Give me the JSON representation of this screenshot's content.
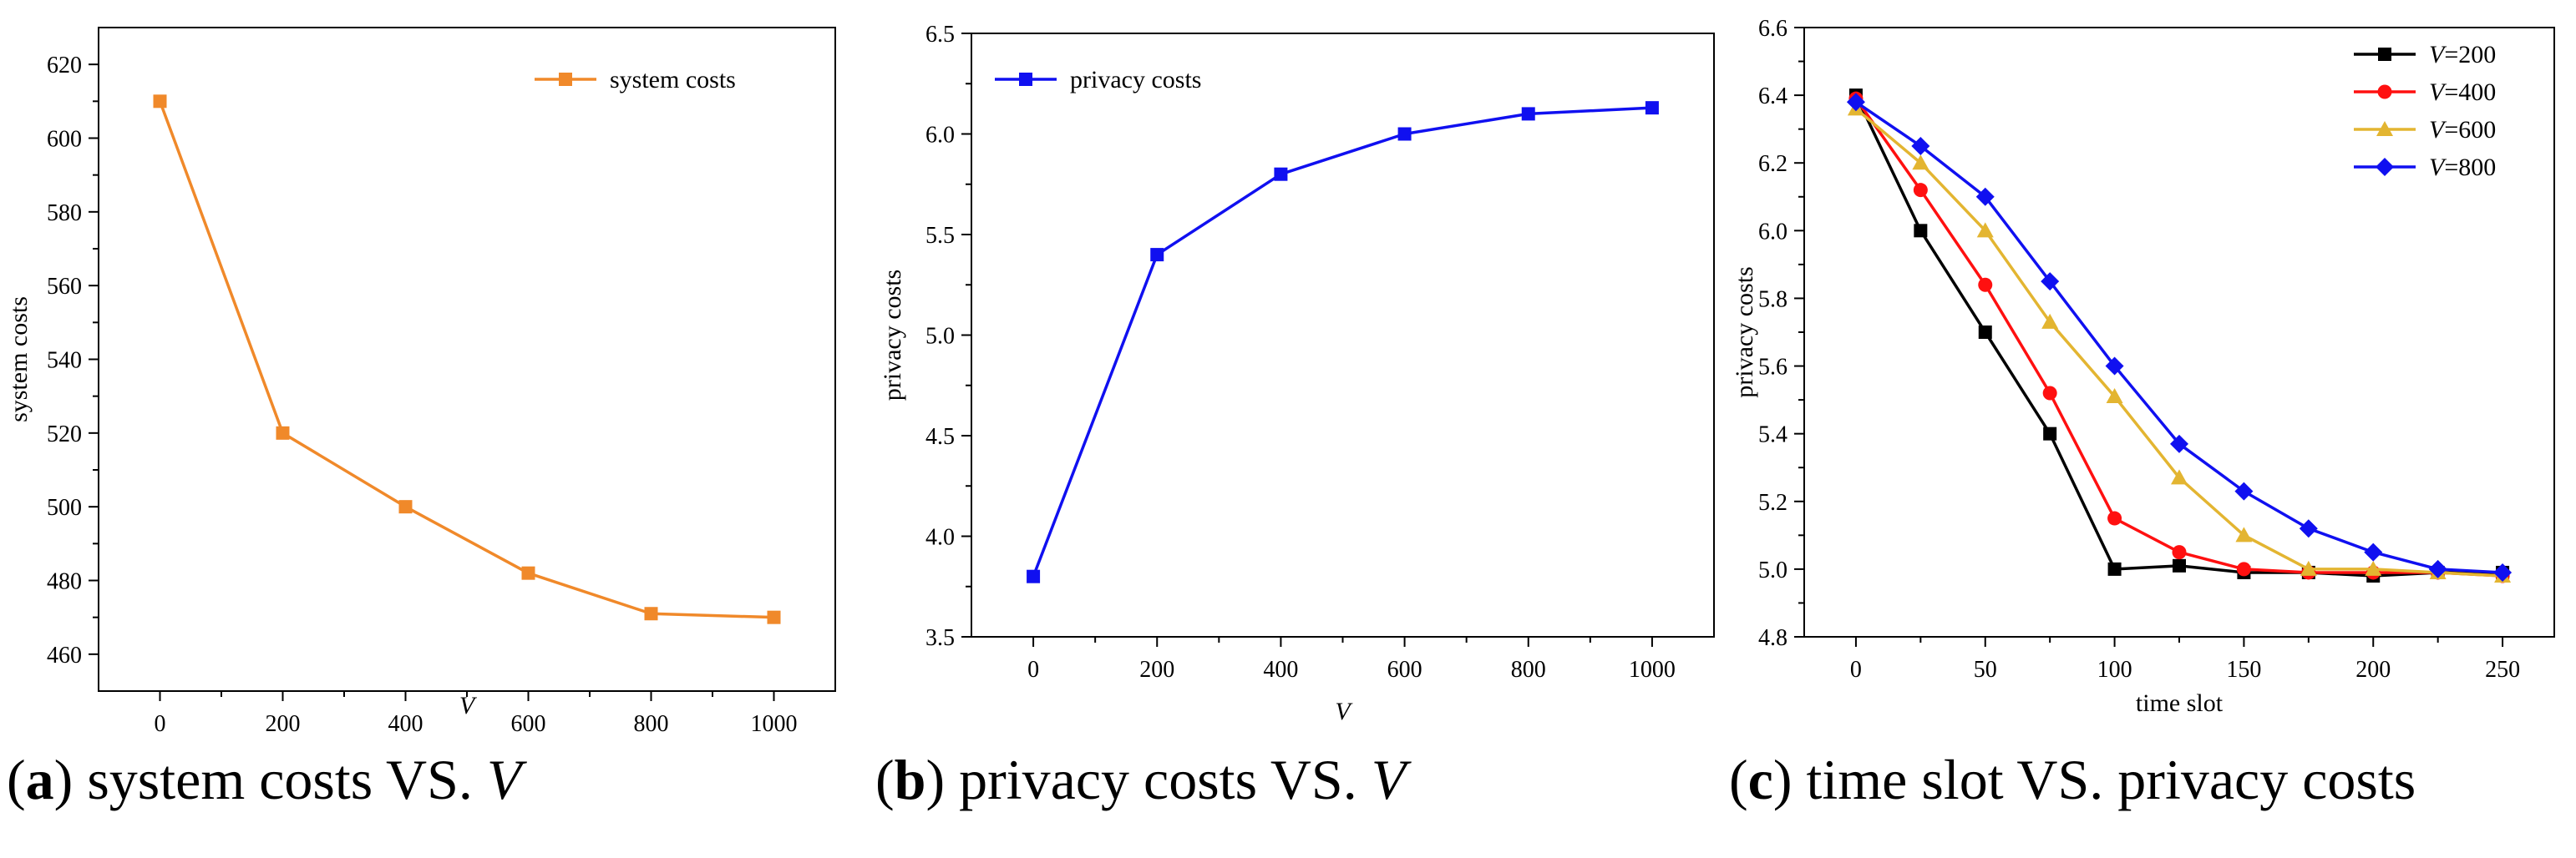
{
  "captions": [
    {
      "tag": "a",
      "text": "system costs VS.",
      "var": "V"
    },
    {
      "tag": "b",
      "text": "privacy costs VS.",
      "var": "V"
    },
    {
      "tag": "c",
      "text": "time slot VS. privacy costs",
      "var": ""
    }
  ],
  "chart_data": [
    {
      "type": "line",
      "x": [
        0,
        200,
        400,
        600,
        800,
        1000
      ],
      "series": [
        {
          "name": "system costs",
          "values": [
            610,
            520,
            500,
            482,
            471,
            470
          ],
          "color": "#F0892A",
          "marker": "square"
        }
      ],
      "xlabel": "V",
      "ylabel": "system costs",
      "xlim": [
        -100,
        1100
      ],
      "ylim": [
        450,
        630
      ],
      "xticks": [
        0,
        200,
        400,
        600,
        800,
        1000
      ],
      "yticks": [
        460,
        480,
        500,
        520,
        540,
        560,
        580,
        600,
        620
      ],
      "legend": "top-right",
      "grid": false
    },
    {
      "type": "line",
      "x": [
        0,
        200,
        400,
        600,
        800,
        1000
      ],
      "series": [
        {
          "name": "privacy costs",
          "values": [
            3.8,
            5.4,
            5.8,
            6.0,
            6.1,
            6.13
          ],
          "color": "#1010F0",
          "marker": "square"
        }
      ],
      "xlabel": "V",
      "ylabel": "privacy costs",
      "xlim": [
        -100,
        1100
      ],
      "ylim": [
        3.5,
        6.5
      ],
      "xticks": [
        0,
        200,
        400,
        600,
        800,
        1000
      ],
      "yticks": [
        "3.5",
        "4.0",
        "4.5",
        "5.0",
        "5.5",
        "6.0",
        "6.5"
      ],
      "legend": "top-left",
      "grid": false
    },
    {
      "type": "line",
      "x": [
        0,
        25,
        50,
        75,
        100,
        125,
        150,
        175,
        200,
        225,
        250
      ],
      "series": [
        {
          "name": "V=200",
          "values": [
            6.4,
            6.0,
            5.7,
            5.4,
            5.0,
            5.01,
            4.99,
            4.99,
            4.98,
            4.99,
            4.99
          ],
          "color": "#000000",
          "marker": "square"
        },
        {
          "name": "V=400",
          "values": [
            6.39,
            6.12,
            5.84,
            5.52,
            5.15,
            5.05,
            5.0,
            4.99,
            4.99,
            4.99,
            4.98
          ],
          "color": "#FF1010",
          "marker": "circle"
        },
        {
          "name": "V=600",
          "values": [
            6.36,
            6.2,
            6.0,
            5.73,
            5.51,
            5.27,
            5.1,
            5.0,
            5.0,
            4.99,
            4.98
          ],
          "color": "#E3B531",
          "marker": "triangle"
        },
        {
          "name": "V=800",
          "values": [
            6.38,
            6.25,
            6.1,
            5.85,
            5.6,
            5.37,
            5.23,
            5.12,
            5.05,
            5.0,
            4.99
          ],
          "color": "#1010F0",
          "marker": "diamond"
        }
      ],
      "xlabel": "time slot",
      "ylabel": "privacy costs",
      "xlim": [
        -20,
        270
      ],
      "ylim": [
        4.8,
        6.6
      ],
      "xticks": [
        0,
        50,
        100,
        150,
        200,
        250
      ],
      "yticks": [
        "4.8",
        "5.0",
        "5.2",
        "5.4",
        "5.6",
        "5.8",
        "6.0",
        "6.2",
        "6.4",
        "6.6"
      ],
      "legend": "top-right",
      "grid": false
    }
  ]
}
